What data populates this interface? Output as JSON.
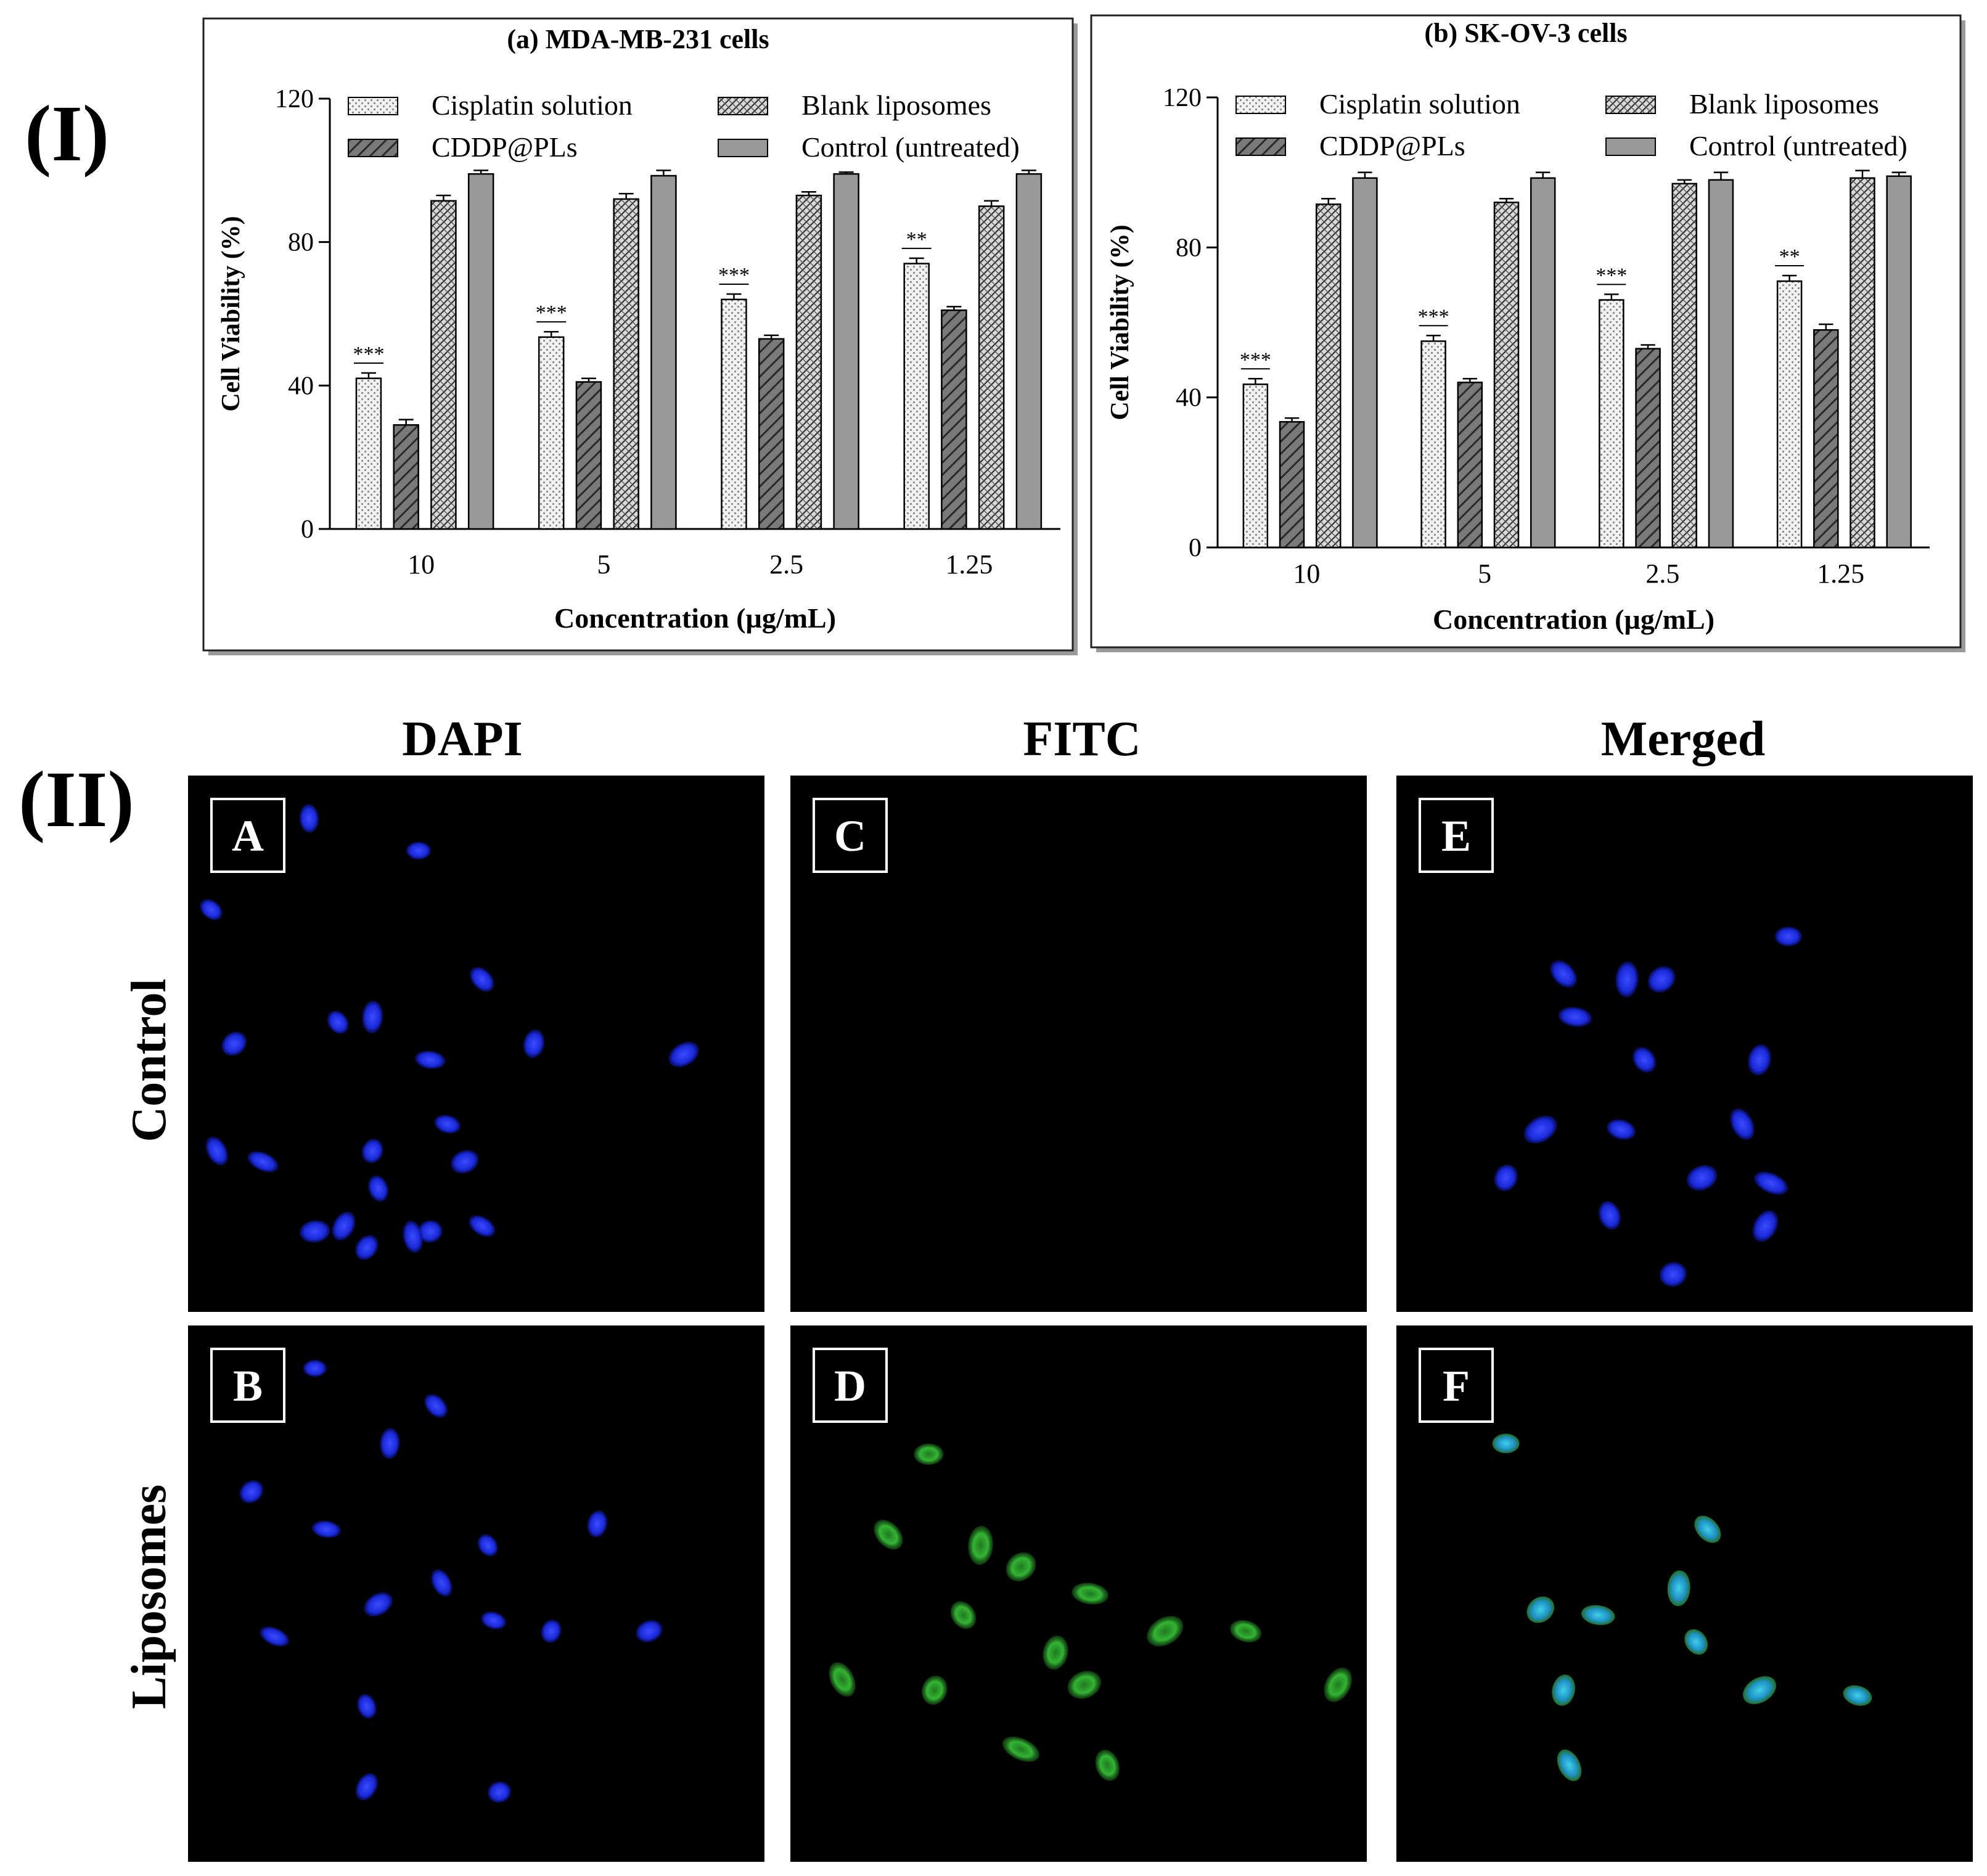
{
  "section_labels": {
    "part1": "(I)",
    "part2": "(II)"
  },
  "legend": {
    "series": [
      "Cisplatin solution",
      "Blank liposomes",
      "CDDP@PLs",
      "Control (untreated)"
    ]
  },
  "chart_data": [
    {
      "type": "bar",
      "title": "(a) MDA-MB-231 cells",
      "xlabel": "Concentration (µg/mL)",
      "ylabel": "Cell Viability (%)",
      "ylim": [
        0,
        120
      ],
      "yticks": [
        0,
        40,
        80,
        120
      ],
      "categories": [
        "10",
        "5",
        "2.5",
        "1.25"
      ],
      "series": [
        {
          "name": "Cisplatin solution",
          "pattern": "dots",
          "values": [
            42,
            53.5,
            64,
            74
          ],
          "errors": [
            1.5,
            1.5,
            1.5,
            1.5
          ]
        },
        {
          "name": "CDDP@PLs",
          "pattern": "hatch-dark",
          "values": [
            29,
            41,
            53,
            61
          ],
          "errors": [
            1.5,
            1,
            1,
            1
          ]
        },
        {
          "name": "Blank liposomes",
          "pattern": "crosshatch",
          "values": [
            91.5,
            92,
            93,
            90
          ],
          "errors": [
            1.5,
            1.5,
            1,
            1.5
          ]
        },
        {
          "name": "Control (untreated)",
          "pattern": "solid-gray",
          "values": [
            99,
            98.5,
            99,
            99
          ],
          "errors": [
            1,
            1.5,
            0.5,
            1
          ]
        }
      ],
      "significance": [
        "***",
        "***",
        "***",
        "**"
      ]
    },
    {
      "type": "bar",
      "title": "(b) SK-OV-3 cells",
      "xlabel": "Concentration (µg/mL)",
      "ylabel": "Cell Viability (%)",
      "ylim": [
        0,
        120
      ],
      "yticks": [
        0,
        40,
        80,
        120
      ],
      "categories": [
        "10",
        "5",
        "2.5",
        "1.25"
      ],
      "series": [
        {
          "name": "Cisplatin solution",
          "pattern": "dots",
          "values": [
            43.5,
            55,
            66,
            71
          ],
          "errors": [
            1.5,
            1.5,
            1.5,
            1.5
          ]
        },
        {
          "name": "CDDP@PLs",
          "pattern": "hatch-dark",
          "values": [
            33.5,
            44,
            53,
            58
          ],
          "errors": [
            1,
            1,
            1,
            1.5
          ]
        },
        {
          "name": "Blank liposomes",
          "pattern": "crosshatch",
          "values": [
            91.5,
            92,
            97,
            98.5
          ],
          "errors": [
            1.5,
            1,
            1,
            2
          ]
        },
        {
          "name": "Control (untreated)",
          "pattern": "solid-gray",
          "values": [
            98.5,
            98.5,
            98,
            99
          ],
          "errors": [
            1.5,
            1.5,
            2,
            1
          ]
        }
      ],
      "significance": [
        "***",
        "***",
        "***",
        "**"
      ]
    }
  ],
  "microscopy": {
    "columns": [
      "DAPI",
      "FITC",
      "Merged"
    ],
    "rows": [
      "Control",
      "Liposomes"
    ],
    "panels": [
      {
        "label": "A",
        "row": "Control",
        "column": "DAPI",
        "stain": "blue"
      },
      {
        "label": "C",
        "row": "Control",
        "column": "FITC",
        "stain": "none"
      },
      {
        "label": "E",
        "row": "Control",
        "column": "Merged",
        "stain": "blue"
      },
      {
        "label": "B",
        "row": "Liposomes",
        "column": "DAPI",
        "stain": "blue"
      },
      {
        "label": "D",
        "row": "Liposomes",
        "column": "FITC",
        "stain": "green"
      },
      {
        "label": "F",
        "row": "Liposomes",
        "column": "Merged",
        "stain": "cyan-green"
      }
    ]
  },
  "colors": {
    "background": "#ffffff",
    "frame": "#222222",
    "control_bar": "#999999",
    "cisplatin_fill": "#e6e6e6",
    "hatch_fill": "#8a8a8a",
    "micro_bg": "#000000",
    "dapi_blue": "#1626d8",
    "fitc_green": "#2fae2f",
    "merged_cyan": "#22a6c8"
  }
}
